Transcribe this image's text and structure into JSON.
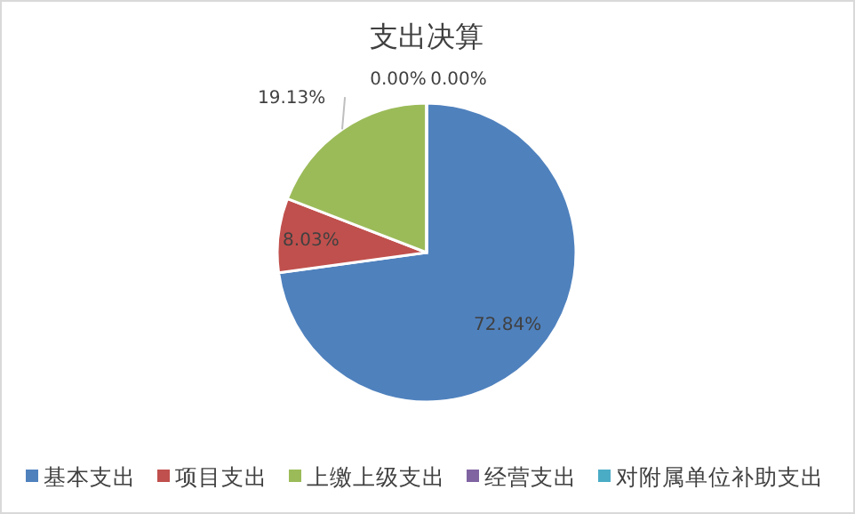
{
  "chart_data": {
    "type": "pie",
    "title": "支出决算",
    "categories": [
      "基本支出",
      "项目支出",
      "上缴上级支出",
      "经营支出",
      "对附属单位补助支出"
    ],
    "values": [
      72.84,
      8.03,
      19.13,
      0.0,
      0.0
    ],
    "colors": [
      "#4f81bd",
      "#c0504d",
      "#9bbb59",
      "#8064a2",
      "#4bacc6"
    ],
    "value_labels": [
      "72.84%",
      "8.03%",
      "19.13%",
      "0.00%",
      "0.00%"
    ],
    "legend": "bottom"
  }
}
